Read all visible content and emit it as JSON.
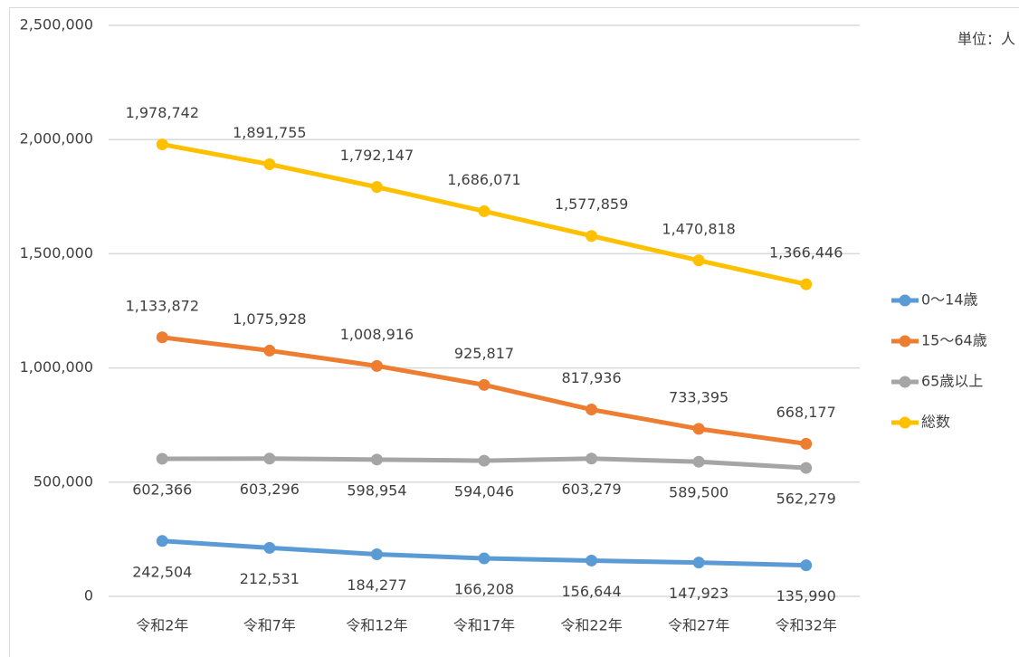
{
  "chart_data": {
    "type": "line",
    "unit_label": "単位：人",
    "categories": [
      "令和2年",
      "令和7年",
      "令和12年",
      "令和17年",
      "令和22年",
      "令和27年",
      "令和32年"
    ],
    "series": [
      {
        "name": "0～14歳",
        "color": "#5b9bd5",
        "label_position": "below",
        "values": [
          242504,
          212531,
          184277,
          166208,
          156644,
          147923,
          135990
        ],
        "value_labels": [
          "242,504",
          "212,531",
          "184,277",
          "166,208",
          "156,644",
          "147,923",
          "135,990"
        ]
      },
      {
        "name": "15～64歳",
        "color": "#ed7d31",
        "label_position": "above",
        "values": [
          1133872,
          1075928,
          1008916,
          925817,
          817936,
          733395,
          668177
        ],
        "value_labels": [
          "1,133,872",
          "1,075,928",
          "1,008,916",
          "925,817",
          "817,936",
          "733,395",
          "668,177"
        ]
      },
      {
        "name": "65歳以上",
        "color": "#a5a5a5",
        "label_position": "below",
        "values": [
          602366,
          603296,
          598954,
          594046,
          603279,
          589500,
          562279
        ],
        "value_labels": [
          "602,366",
          "603,296",
          "598,954",
          "594,046",
          "603,279",
          "589,500",
          "562,279"
        ]
      },
      {
        "name": "総数",
        "color": "#ffc000",
        "label_position": "above",
        "values": [
          1978742,
          1891755,
          1792147,
          1686071,
          1577859,
          1470818,
          1366446
        ],
        "value_labels": [
          "1,978,742",
          "1,891,755",
          "1,792,147",
          "1,686,071",
          "1,577,859",
          "1,470,818",
          "1,366,446"
        ]
      }
    ],
    "ylim": [
      0,
      2500000
    ],
    "yticks": [
      0,
      {
        "value": 500000,
        "label": "500,000"
      },
      {
        "value": 1000000,
        "label": "1,000,000"
      },
      {
        "value": 1500000,
        "label": "1,500,000"
      },
      {
        "value": 2000000,
        "label": "2,000,000"
      },
      {
        "value": 2500000,
        "label": "2,500,000"
      }
    ],
    "grid": true,
    "legend": "right"
  }
}
